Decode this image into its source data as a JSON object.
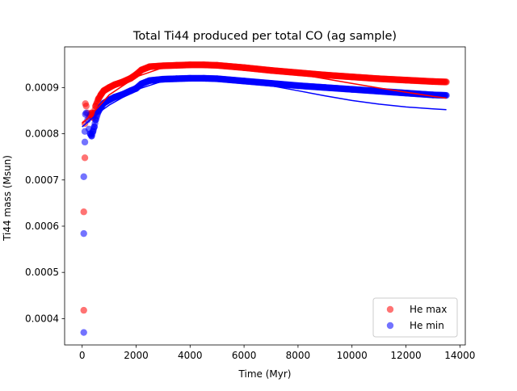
{
  "chart_data": {
    "type": "scatter",
    "title": "Total Ti44 produced per total CO (ag sample)",
    "xlabel": "Time (Myr)",
    "ylabel": "Ti44 mass (Msun)",
    "xlim": [
      -650,
      14200
    ],
    "ylim": [
      0.000343,
      0.000988
    ],
    "xticks": [
      0,
      2000,
      4000,
      6000,
      8000,
      10000,
      12000,
      14000
    ],
    "xtick_labels": [
      "0",
      "2000",
      "4000",
      "6000",
      "8000",
      "10000",
      "12000",
      "14000"
    ],
    "yticks": [
      0.0004,
      0.0005,
      0.0006,
      0.0007,
      0.0008,
      0.0009
    ],
    "ytick_labels": [
      "0.0004",
      "0.0005",
      "0.0006",
      "0.0007",
      "0.0008",
      "0.0009"
    ],
    "grid": false,
    "legend_position": "bottom-right",
    "series": [
      {
        "name": "He max",
        "color": "#ff0000",
        "alpha": 0.55,
        "x": [
          60,
          60,
          100,
          100,
          120,
          150,
          200,
          250,
          300,
          350,
          400,
          450,
          500,
          600,
          700,
          800,
          1000,
          1200,
          1500,
          1800,
          2000,
          2200,
          2500,
          3000,
          3500,
          4000,
          4500,
          5000,
          6000,
          7000,
          8000,
          9000,
          10000,
          11000,
          12000,
          13000,
          13500
        ],
        "y": [
          0.000418,
          0.000631,
          0.000748,
          0.000822,
          0.000865,
          0.00086,
          0.000845,
          0.000835,
          0.00084,
          0.000845,
          0.000835,
          0.000845,
          0.00086,
          0.000875,
          0.000885,
          0.000893,
          0.0009,
          0.000906,
          0.000912,
          0.00092,
          0.000928,
          0.000938,
          0.000945,
          0.000947,
          0.000948,
          0.000949,
          0.000949,
          0.000948,
          0.000943,
          0.000937,
          0.000932,
          0.000927,
          0.000923,
          0.000919,
          0.000916,
          0.000913,
          0.000912
        ]
      },
      {
        "name": "He min",
        "color": "#0000ff",
        "alpha": 0.55,
        "x": [
          60,
          60,
          60,
          100,
          100,
          120,
          150,
          200,
          250,
          300,
          350,
          400,
          450,
          500,
          600,
          700,
          800,
          1000,
          1200,
          1500,
          1800,
          2000,
          2200,
          2500,
          3000,
          3500,
          4000,
          4500,
          5000,
          6000,
          7000,
          8000,
          9000,
          10000,
          11000,
          12000,
          13000,
          13500
        ],
        "y": [
          0.00037,
          0.000584,
          0.000707,
          0.000782,
          0.000805,
          0.000842,
          0.000845,
          0.00083,
          0.00081,
          0.0008,
          0.000795,
          0.000805,
          0.000815,
          0.00083,
          0.000848,
          0.000858,
          0.000866,
          0.000873,
          0.000879,
          0.000885,
          0.000893,
          0.000898,
          0.000908,
          0.000915,
          0.000918,
          0.000919,
          0.00092,
          0.00092,
          0.000919,
          0.000914,
          0.000909,
          0.000904,
          0.0009,
          0.000896,
          0.000892,
          0.000888,
          0.000884,
          0.000883
        ]
      }
    ],
    "fit_lines": [
      {
        "color": "#ff0000",
        "x": [
          0,
          200,
          600,
          1000,
          2000,
          3000,
          4000,
          5000,
          6000,
          7000,
          8000,
          9000,
          10000,
          11000,
          12000,
          13000,
          13500
        ],
        "y": [
          0.000823,
          0.000833,
          0.000858,
          0.000884,
          0.000923,
          0.000943,
          0.000951,
          0.000951,
          0.000946,
          0.000938,
          0.000929,
          0.000919,
          0.000909,
          0.000899,
          0.00089,
          0.000881,
          0.000877
        ]
      },
      {
        "color": "#0000ff",
        "x": [
          0,
          200,
          600,
          1000,
          2000,
          3000,
          4000,
          5000,
          6000,
          7000,
          8000,
          9000,
          10000,
          11000,
          12000,
          13000,
          13500
        ],
        "y": [
          0.000815,
          0.000825,
          0.000845,
          0.000862,
          0.000895,
          0.000914,
          0.000922,
          0.000921,
          0.000914,
          0.000904,
          0.000893,
          0.000882,
          0.000872,
          0.000864,
          0.000858,
          0.000854,
          0.000852
        ]
      }
    ]
  }
}
